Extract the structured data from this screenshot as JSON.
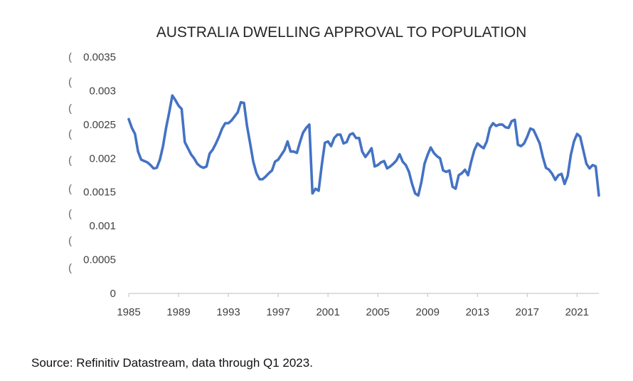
{
  "chart_data": {
    "type": "line",
    "title": "AUSTRALIA DWELLING APPROVAL TO POPULATION",
    "xlabel": "",
    "ylabel": "",
    "xlim": [
      1985,
      2022.75
    ],
    "ylim": [
      0,
      0.0035
    ],
    "yticks": [
      "0",
      "0.0005",
      "0.001",
      "0.0015",
      "0.002",
      "0.0025",
      "0.003",
      "0.0035"
    ],
    "xticks": [
      "1985",
      "1989",
      "1993",
      "1997",
      "2001",
      "2005",
      "2009",
      "2013",
      "2017",
      "2021"
    ],
    "y_stub_glyph": "(",
    "grid": false,
    "legend": "none",
    "line_color": "#4472C4",
    "series": [
      {
        "values": [
          [
            1985.0,
            0.00258
          ],
          [
            1985.25,
            0.00245
          ],
          [
            1985.5,
            0.00236
          ],
          [
            1985.75,
            0.0021
          ],
          [
            1986.0,
            0.00198
          ],
          [
            1986.25,
            0.00196
          ],
          [
            1986.5,
            0.00194
          ],
          [
            1986.75,
            0.0019
          ],
          [
            1987.0,
            0.00185
          ],
          [
            1987.25,
            0.00186
          ],
          [
            1987.5,
            0.00198
          ],
          [
            1987.75,
            0.00218
          ],
          [
            1988.0,
            0.00245
          ],
          [
            1988.25,
            0.00268
          ],
          [
            1988.5,
            0.00293
          ],
          [
            1988.75,
            0.00286
          ],
          [
            1989.0,
            0.00278
          ],
          [
            1989.25,
            0.00273
          ],
          [
            1989.5,
            0.00224
          ],
          [
            1989.75,
            0.00215
          ],
          [
            1990.0,
            0.00206
          ],
          [
            1990.25,
            0.002
          ],
          [
            1990.5,
            0.00192
          ],
          [
            1990.75,
            0.00188
          ],
          [
            1991.0,
            0.00186
          ],
          [
            1991.25,
            0.00188
          ],
          [
            1991.5,
            0.00207
          ],
          [
            1991.75,
            0.00213
          ],
          [
            1992.0,
            0.00222
          ],
          [
            1992.25,
            0.00232
          ],
          [
            1992.5,
            0.00244
          ],
          [
            1992.75,
            0.00252
          ],
          [
            1993.0,
            0.00252
          ],
          [
            1993.25,
            0.00256
          ],
          [
            1993.5,
            0.00262
          ],
          [
            1993.75,
            0.00268
          ],
          [
            1994.0,
            0.00283
          ],
          [
            1994.25,
            0.00282
          ],
          [
            1994.5,
            0.00248
          ],
          [
            1994.75,
            0.00222
          ],
          [
            1995.0,
            0.00195
          ],
          [
            1995.25,
            0.00178
          ],
          [
            1995.5,
            0.00169
          ],
          [
            1995.75,
            0.00169
          ],
          [
            1996.0,
            0.00173
          ],
          [
            1996.25,
            0.00178
          ],
          [
            1996.5,
            0.00182
          ],
          [
            1996.75,
            0.00195
          ],
          [
            1997.0,
            0.00198
          ],
          [
            1997.25,
            0.00205
          ],
          [
            1997.5,
            0.00212
          ],
          [
            1997.75,
            0.00225
          ],
          [
            1998.0,
            0.0021
          ],
          [
            1998.25,
            0.0021
          ],
          [
            1998.5,
            0.00208
          ],
          [
            1998.75,
            0.00224
          ],
          [
            1999.0,
            0.00238
          ],
          [
            1999.25,
            0.00245
          ],
          [
            1999.5,
            0.0025
          ],
          [
            1999.75,
            0.00148
          ],
          [
            2000.0,
            0.00155
          ],
          [
            2000.25,
            0.00152
          ],
          [
            2000.5,
            0.0019
          ],
          [
            2000.75,
            0.00223
          ],
          [
            2001.0,
            0.00225
          ],
          [
            2001.25,
            0.00218
          ],
          [
            2001.5,
            0.0023
          ],
          [
            2001.75,
            0.00235
          ],
          [
            2002.0,
            0.00235
          ],
          [
            2002.25,
            0.00222
          ],
          [
            2002.5,
            0.00224
          ],
          [
            2002.75,
            0.00235
          ],
          [
            2003.0,
            0.00237
          ],
          [
            2003.25,
            0.0023
          ],
          [
            2003.5,
            0.0023
          ],
          [
            2003.75,
            0.0021
          ],
          [
            2004.0,
            0.00202
          ],
          [
            2004.25,
            0.00208
          ],
          [
            2004.5,
            0.00215
          ],
          [
            2004.75,
            0.00188
          ],
          [
            2005.0,
            0.0019
          ],
          [
            2005.25,
            0.00194
          ],
          [
            2005.5,
            0.00196
          ],
          [
            2005.75,
            0.00185
          ],
          [
            2006.0,
            0.00188
          ],
          [
            2006.25,
            0.00192
          ],
          [
            2006.5,
            0.00197
          ],
          [
            2006.75,
            0.00206
          ],
          [
            2007.0,
            0.00195
          ],
          [
            2007.25,
            0.0019
          ],
          [
            2007.5,
            0.0018
          ],
          [
            2007.75,
            0.00162
          ],
          [
            2008.0,
            0.00148
          ],
          [
            2008.25,
            0.00145
          ],
          [
            2008.5,
            0.00165
          ],
          [
            2008.75,
            0.00192
          ],
          [
            2009.0,
            0.00205
          ],
          [
            2009.25,
            0.00216
          ],
          [
            2009.5,
            0.00208
          ],
          [
            2009.75,
            0.00203
          ],
          [
            2010.0,
            0.002
          ],
          [
            2010.25,
            0.00182
          ],
          [
            2010.5,
            0.0018
          ],
          [
            2010.75,
            0.00182
          ],
          [
            2011.0,
            0.00158
          ],
          [
            2011.25,
            0.00155
          ],
          [
            2011.5,
            0.00175
          ],
          [
            2011.75,
            0.00178
          ],
          [
            2012.0,
            0.00183
          ],
          [
            2012.25,
            0.00175
          ],
          [
            2012.5,
            0.00195
          ],
          [
            2012.75,
            0.00212
          ],
          [
            2013.0,
            0.00222
          ],
          [
            2013.25,
            0.00218
          ],
          [
            2013.5,
            0.00215
          ],
          [
            2013.75,
            0.00225
          ],
          [
            2014.0,
            0.00245
          ],
          [
            2014.25,
            0.00252
          ],
          [
            2014.5,
            0.00248
          ],
          [
            2014.75,
            0.0025
          ],
          [
            2015.0,
            0.0025
          ],
          [
            2015.25,
            0.00246
          ],
          [
            2015.5,
            0.00245
          ],
          [
            2015.75,
            0.00255
          ],
          [
            2016.0,
            0.00257
          ],
          [
            2016.25,
            0.0022
          ],
          [
            2016.5,
            0.00218
          ],
          [
            2016.75,
            0.00222
          ],
          [
            2017.0,
            0.00232
          ],
          [
            2017.25,
            0.00244
          ],
          [
            2017.5,
            0.00242
          ],
          [
            2017.75,
            0.00232
          ],
          [
            2018.0,
            0.00222
          ],
          [
            2018.25,
            0.00202
          ],
          [
            2018.5,
            0.00186
          ],
          [
            2018.75,
            0.00183
          ],
          [
            2019.0,
            0.00177
          ],
          [
            2019.25,
            0.00168
          ],
          [
            2019.5,
            0.00175
          ],
          [
            2019.75,
            0.00177
          ],
          [
            2020.0,
            0.00162
          ],
          [
            2020.25,
            0.00174
          ],
          [
            2020.5,
            0.00205
          ],
          [
            2020.75,
            0.00225
          ],
          [
            2021.0,
            0.00236
          ],
          [
            2021.25,
            0.00232
          ],
          [
            2021.5,
            0.00212
          ],
          [
            2021.75,
            0.00192
          ],
          [
            2022.0,
            0.00185
          ],
          [
            2022.25,
            0.0019
          ],
          [
            2022.5,
            0.00188
          ],
          [
            2022.75,
            0.00145
          ]
        ]
      }
    ]
  },
  "source_note": "Source: Refinitiv Datastream, data through Q1 2023."
}
